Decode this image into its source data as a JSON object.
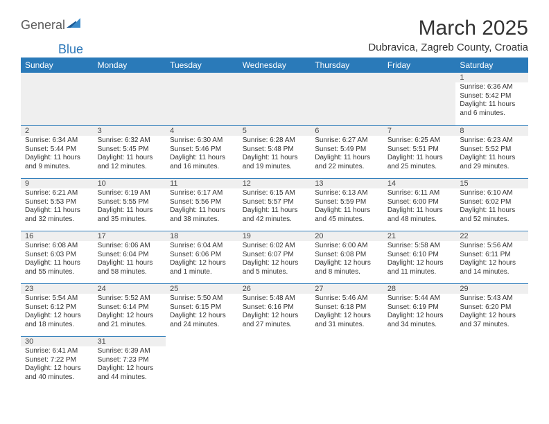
{
  "logo": {
    "part1": "General",
    "part2": "Blue"
  },
  "title": "March 2025",
  "location": "Dubravica, Zagreb County, Croatia",
  "colors": {
    "header_bg": "#2a7ab9",
    "header_text": "#ffffff",
    "daybar_bg": "#efefef",
    "border": "#2a7ab9"
  },
  "weekdays": [
    "Sunday",
    "Monday",
    "Tuesday",
    "Wednesday",
    "Thursday",
    "Friday",
    "Saturday"
  ],
  "weeks": [
    [
      null,
      null,
      null,
      null,
      null,
      null,
      {
        "n": "1",
        "sr": "Sunrise: 6:36 AM",
        "ss": "Sunset: 5:42 PM",
        "dl1": "Daylight: 11 hours",
        "dl2": "and 6 minutes."
      }
    ],
    [
      {
        "n": "2",
        "sr": "Sunrise: 6:34 AM",
        "ss": "Sunset: 5:44 PM",
        "dl1": "Daylight: 11 hours",
        "dl2": "and 9 minutes."
      },
      {
        "n": "3",
        "sr": "Sunrise: 6:32 AM",
        "ss": "Sunset: 5:45 PM",
        "dl1": "Daylight: 11 hours",
        "dl2": "and 12 minutes."
      },
      {
        "n": "4",
        "sr": "Sunrise: 6:30 AM",
        "ss": "Sunset: 5:46 PM",
        "dl1": "Daylight: 11 hours",
        "dl2": "and 16 minutes."
      },
      {
        "n": "5",
        "sr": "Sunrise: 6:28 AM",
        "ss": "Sunset: 5:48 PM",
        "dl1": "Daylight: 11 hours",
        "dl2": "and 19 minutes."
      },
      {
        "n": "6",
        "sr": "Sunrise: 6:27 AM",
        "ss": "Sunset: 5:49 PM",
        "dl1": "Daylight: 11 hours",
        "dl2": "and 22 minutes."
      },
      {
        "n": "7",
        "sr": "Sunrise: 6:25 AM",
        "ss": "Sunset: 5:51 PM",
        "dl1": "Daylight: 11 hours",
        "dl2": "and 25 minutes."
      },
      {
        "n": "8",
        "sr": "Sunrise: 6:23 AM",
        "ss": "Sunset: 5:52 PM",
        "dl1": "Daylight: 11 hours",
        "dl2": "and 29 minutes."
      }
    ],
    [
      {
        "n": "9",
        "sr": "Sunrise: 6:21 AM",
        "ss": "Sunset: 5:53 PM",
        "dl1": "Daylight: 11 hours",
        "dl2": "and 32 minutes."
      },
      {
        "n": "10",
        "sr": "Sunrise: 6:19 AM",
        "ss": "Sunset: 5:55 PM",
        "dl1": "Daylight: 11 hours",
        "dl2": "and 35 minutes."
      },
      {
        "n": "11",
        "sr": "Sunrise: 6:17 AM",
        "ss": "Sunset: 5:56 PM",
        "dl1": "Daylight: 11 hours",
        "dl2": "and 38 minutes."
      },
      {
        "n": "12",
        "sr": "Sunrise: 6:15 AM",
        "ss": "Sunset: 5:57 PM",
        "dl1": "Daylight: 11 hours",
        "dl2": "and 42 minutes."
      },
      {
        "n": "13",
        "sr": "Sunrise: 6:13 AM",
        "ss": "Sunset: 5:59 PM",
        "dl1": "Daylight: 11 hours",
        "dl2": "and 45 minutes."
      },
      {
        "n": "14",
        "sr": "Sunrise: 6:11 AM",
        "ss": "Sunset: 6:00 PM",
        "dl1": "Daylight: 11 hours",
        "dl2": "and 48 minutes."
      },
      {
        "n": "15",
        "sr": "Sunrise: 6:10 AM",
        "ss": "Sunset: 6:02 PM",
        "dl1": "Daylight: 11 hours",
        "dl2": "and 52 minutes."
      }
    ],
    [
      {
        "n": "16",
        "sr": "Sunrise: 6:08 AM",
        "ss": "Sunset: 6:03 PM",
        "dl1": "Daylight: 11 hours",
        "dl2": "and 55 minutes."
      },
      {
        "n": "17",
        "sr": "Sunrise: 6:06 AM",
        "ss": "Sunset: 6:04 PM",
        "dl1": "Daylight: 11 hours",
        "dl2": "and 58 minutes."
      },
      {
        "n": "18",
        "sr": "Sunrise: 6:04 AM",
        "ss": "Sunset: 6:06 PM",
        "dl1": "Daylight: 12 hours",
        "dl2": "and 1 minute."
      },
      {
        "n": "19",
        "sr": "Sunrise: 6:02 AM",
        "ss": "Sunset: 6:07 PM",
        "dl1": "Daylight: 12 hours",
        "dl2": "and 5 minutes."
      },
      {
        "n": "20",
        "sr": "Sunrise: 6:00 AM",
        "ss": "Sunset: 6:08 PM",
        "dl1": "Daylight: 12 hours",
        "dl2": "and 8 minutes."
      },
      {
        "n": "21",
        "sr": "Sunrise: 5:58 AM",
        "ss": "Sunset: 6:10 PM",
        "dl1": "Daylight: 12 hours",
        "dl2": "and 11 minutes."
      },
      {
        "n": "22",
        "sr": "Sunrise: 5:56 AM",
        "ss": "Sunset: 6:11 PM",
        "dl1": "Daylight: 12 hours",
        "dl2": "and 14 minutes."
      }
    ],
    [
      {
        "n": "23",
        "sr": "Sunrise: 5:54 AM",
        "ss": "Sunset: 6:12 PM",
        "dl1": "Daylight: 12 hours",
        "dl2": "and 18 minutes."
      },
      {
        "n": "24",
        "sr": "Sunrise: 5:52 AM",
        "ss": "Sunset: 6:14 PM",
        "dl1": "Daylight: 12 hours",
        "dl2": "and 21 minutes."
      },
      {
        "n": "25",
        "sr": "Sunrise: 5:50 AM",
        "ss": "Sunset: 6:15 PM",
        "dl1": "Daylight: 12 hours",
        "dl2": "and 24 minutes."
      },
      {
        "n": "26",
        "sr": "Sunrise: 5:48 AM",
        "ss": "Sunset: 6:16 PM",
        "dl1": "Daylight: 12 hours",
        "dl2": "and 27 minutes."
      },
      {
        "n": "27",
        "sr": "Sunrise: 5:46 AM",
        "ss": "Sunset: 6:18 PM",
        "dl1": "Daylight: 12 hours",
        "dl2": "and 31 minutes."
      },
      {
        "n": "28",
        "sr": "Sunrise: 5:44 AM",
        "ss": "Sunset: 6:19 PM",
        "dl1": "Daylight: 12 hours",
        "dl2": "and 34 minutes."
      },
      {
        "n": "29",
        "sr": "Sunrise: 5:43 AM",
        "ss": "Sunset: 6:20 PM",
        "dl1": "Daylight: 12 hours",
        "dl2": "and 37 minutes."
      }
    ],
    [
      {
        "n": "30",
        "sr": "Sunrise: 6:41 AM",
        "ss": "Sunset: 7:22 PM",
        "dl1": "Daylight: 12 hours",
        "dl2": "and 40 minutes."
      },
      {
        "n": "31",
        "sr": "Sunrise: 6:39 AM",
        "ss": "Sunset: 7:23 PM",
        "dl1": "Daylight: 12 hours",
        "dl2": "and 44 minutes."
      },
      null,
      null,
      null,
      null,
      null
    ]
  ]
}
